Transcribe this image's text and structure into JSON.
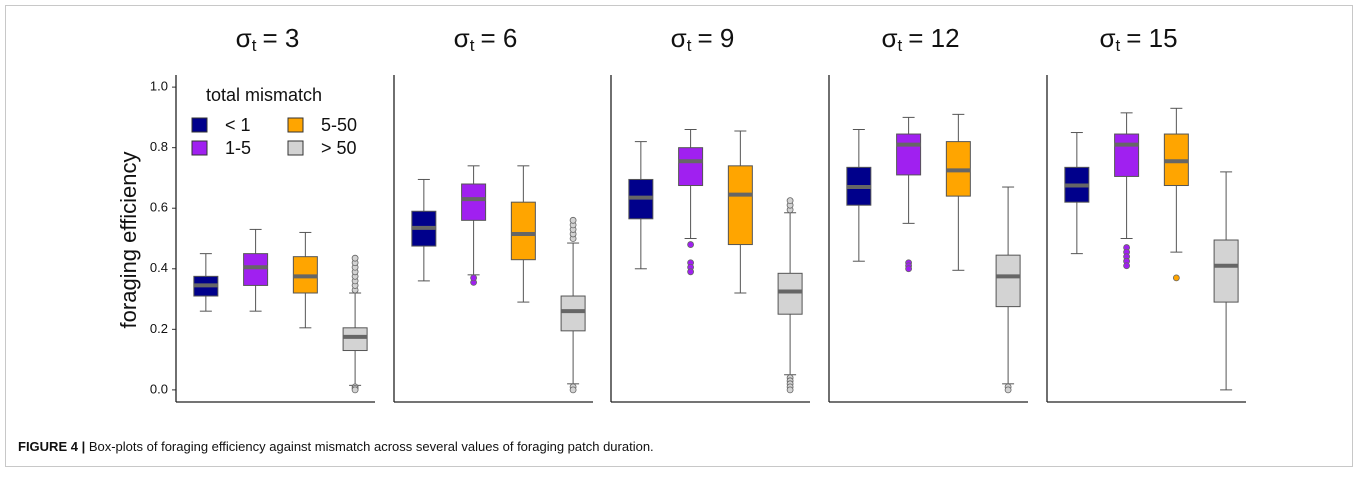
{
  "chart_data": {
    "type": "box",
    "y_label": "foraging efficiency",
    "legend_title": "total mismatch",
    "legend_position": "upper left",
    "median_color": "#666666",
    "ylim": [
      -0.04,
      1.04
    ],
    "yticks": [
      {
        "value": 0,
        "label": "0.0"
      },
      0.2,
      0.4,
      0.6,
      0.8,
      {
        "value": 1,
        "label": "1.0"
      }
    ],
    "series": [
      {
        "name": "< 1",
        "color": "#00008b"
      },
      {
        "name": "1-5",
        "color": "#a020f0"
      },
      {
        "name": "5-50",
        "color": "#ffa500"
      },
      {
        "name": "> 50",
        "color": "#d3d3d3"
      }
    ],
    "panels": [
      {
        "title": {
          "symbol": "σ",
          "subscript": "t",
          "rest": "= 3"
        },
        "boxes": [
          {
            "whisker_low": 0.26,
            "q1": 0.31,
            "median": 0.345,
            "q3": 0.375,
            "whisker_high": 0.45,
            "outliers": []
          },
          {
            "whisker_low": 0.26,
            "q1": 0.345,
            "median": 0.405,
            "q3": 0.45,
            "whisker_high": 0.53,
            "outliers": []
          },
          {
            "whisker_low": 0.205,
            "q1": 0.32,
            "median": 0.375,
            "q3": 0.44,
            "whisker_high": 0.52,
            "outliers": []
          },
          {
            "whisker_low": 0.015,
            "q1": 0.13,
            "median": 0.175,
            "q3": 0.205,
            "whisker_high": 0.32,
            "outliers": [
              0.33,
              0.345,
              0.36,
              0.375,
              0.39,
              0.405,
              0.42,
              0.435,
              0.01,
              0.005,
              0.0
            ]
          }
        ]
      },
      {
        "title": {
          "symbol": "σ",
          "subscript": "t",
          "rest": "= 6"
        },
        "boxes": [
          {
            "whisker_low": 0.36,
            "q1": 0.475,
            "median": 0.535,
            "q3": 0.59,
            "whisker_high": 0.695,
            "outliers": []
          },
          {
            "whisker_low": 0.38,
            "q1": 0.56,
            "median": 0.63,
            "q3": 0.68,
            "whisker_high": 0.74,
            "outliers": [
              0.355,
              0.37
            ]
          },
          {
            "whisker_low": 0.29,
            "q1": 0.43,
            "median": 0.515,
            "q3": 0.62,
            "whisker_high": 0.74,
            "outliers": []
          },
          {
            "whisker_low": 0.02,
            "q1": 0.195,
            "median": 0.26,
            "q3": 0.31,
            "whisker_high": 0.485,
            "outliers": [
              0.5,
              0.515,
              0.53,
              0.545,
              0.56,
              0.01,
              0.0
            ]
          }
        ]
      },
      {
        "title": {
          "symbol": "σ",
          "subscript": "t",
          "rest": "= 9"
        },
        "boxes": [
          {
            "whisker_low": 0.4,
            "q1": 0.565,
            "median": 0.635,
            "q3": 0.695,
            "whisker_high": 0.82,
            "outliers": []
          },
          {
            "whisker_low": 0.5,
            "q1": 0.675,
            "median": 0.755,
            "q3": 0.8,
            "whisker_high": 0.86,
            "outliers": [
              0.48,
              0.42,
              0.405,
              0.39
            ]
          },
          {
            "whisker_low": 0.32,
            "q1": 0.48,
            "median": 0.645,
            "q3": 0.74,
            "whisker_high": 0.855,
            "outliers": []
          },
          {
            "whisker_low": 0.05,
            "q1": 0.25,
            "median": 0.325,
            "q3": 0.385,
            "whisker_high": 0.585,
            "outliers": [
              0.595,
              0.61,
              0.625,
              0.04,
              0.03,
              0.02,
              0.01,
              0.0
            ]
          }
        ]
      },
      {
        "title": {
          "symbol": "σ",
          "subscript": "t",
          "rest": "= 12"
        },
        "boxes": [
          {
            "whisker_low": 0.425,
            "q1": 0.61,
            "median": 0.67,
            "q3": 0.735,
            "whisker_high": 0.86,
            "outliers": []
          },
          {
            "whisker_low": 0.55,
            "q1": 0.71,
            "median": 0.81,
            "q3": 0.845,
            "whisker_high": 0.9,
            "outliers": [
              0.42,
              0.41,
              0.4
            ]
          },
          {
            "whisker_low": 0.395,
            "q1": 0.64,
            "median": 0.725,
            "q3": 0.82,
            "whisker_high": 0.91,
            "outliers": []
          },
          {
            "whisker_low": 0.02,
            "q1": 0.275,
            "median": 0.375,
            "q3": 0.445,
            "whisker_high": 0.67,
            "outliers": [
              0.01,
              0.0
            ]
          }
        ]
      },
      {
        "title": {
          "symbol": "σ",
          "subscript": "t",
          "rest": "= 15"
        },
        "boxes": [
          {
            "whisker_low": 0.45,
            "q1": 0.62,
            "median": 0.675,
            "q3": 0.735,
            "whisker_high": 0.85,
            "outliers": []
          },
          {
            "whisker_low": 0.5,
            "q1": 0.705,
            "median": 0.81,
            "q3": 0.845,
            "whisker_high": 0.915,
            "outliers": [
              0.47,
              0.455,
              0.44,
              0.425,
              0.41
            ]
          },
          {
            "whisker_low": 0.455,
            "q1": 0.675,
            "median": 0.755,
            "q3": 0.845,
            "whisker_high": 0.93,
            "outliers": [
              0.37
            ]
          },
          {
            "whisker_low": 0.0,
            "q1": 0.29,
            "median": 0.41,
            "q3": 0.495,
            "whisker_high": 0.72,
            "outliers": []
          }
        ]
      }
    ]
  },
  "caption": {
    "label": "FIGURE 4 |",
    "text": "Box-plots of foraging efficiency against mismatch across several values of foraging patch duration."
  }
}
